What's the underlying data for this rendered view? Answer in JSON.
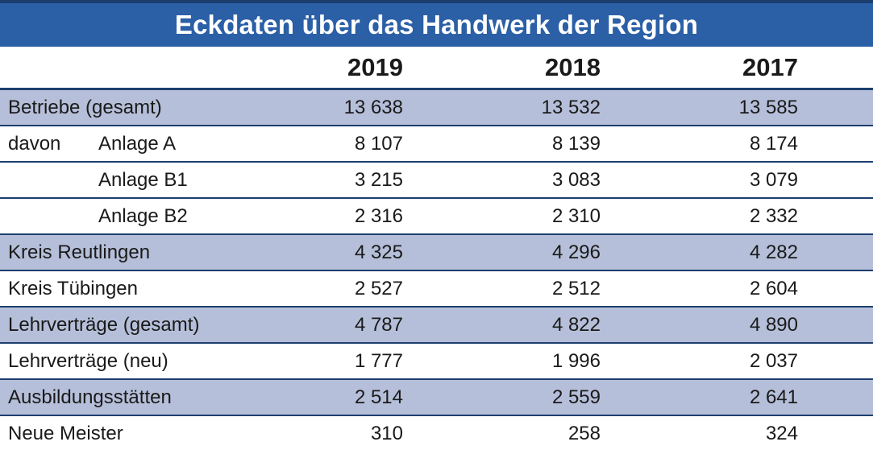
{
  "title": "Eckdaten über das Handwerk der Region",
  "colors": {
    "title_bar": "#2b5fa6",
    "row_shade": "#b6bfd9",
    "rule_line": "#1c3e6e"
  },
  "table": {
    "columns": [
      "2019",
      "2018",
      "2017"
    ],
    "rows": [
      {
        "prefix": "",
        "label": "Betriebe (gesamt)",
        "values": [
          "13 638",
          "13 532",
          "13 585"
        ]
      },
      {
        "prefix": "davon",
        "label": "Anlage A",
        "values": [
          "8 107",
          "8 139",
          "8 174"
        ]
      },
      {
        "prefix": "",
        "label": "Anlage B1",
        "values": [
          "3 215",
          "3 083",
          "3 079"
        ]
      },
      {
        "prefix": "",
        "label": "Anlage B2",
        "values": [
          "2 316",
          "2 310",
          "2 332"
        ]
      },
      {
        "prefix": "",
        "label": "Kreis Reutlingen",
        "values": [
          "4 325",
          "4 296",
          "4 282"
        ]
      },
      {
        "prefix": "",
        "label": "Kreis Tübingen",
        "values": [
          "2 527",
          "2 512",
          "2 604"
        ]
      },
      {
        "prefix": "",
        "label": "Lehrverträge (gesamt)",
        "values": [
          "4 787",
          "4 822",
          "4 890"
        ]
      },
      {
        "prefix": "",
        "label": "Lehrverträge (neu)",
        "values": [
          "1 777",
          "1 996",
          "2 037"
        ]
      },
      {
        "prefix": "",
        "label": "Ausbildungsstätten",
        "values": [
          "2 514",
          "2 559",
          "2 641"
        ]
      },
      {
        "prefix": "",
        "label": "Neue Meister",
        "values": [
          "310",
          "258",
          "324"
        ]
      }
    ]
  },
  "chart_data": {
    "type": "table",
    "title": "Eckdaten über das Handwerk der Region",
    "columns": [
      "",
      "2019",
      "2018",
      "2017"
    ],
    "rows": [
      {
        "label": "Betriebe (gesamt)",
        "values": [
          13638,
          13532,
          13585
        ]
      },
      {
        "label": "davon Anlage A",
        "values": [
          8107,
          8139,
          8174
        ]
      },
      {
        "label": "davon Anlage B1",
        "values": [
          3215,
          3083,
          3079
        ]
      },
      {
        "label": "davon Anlage B2",
        "values": [
          2316,
          2310,
          2332
        ]
      },
      {
        "label": "Kreis Reutlingen",
        "values": [
          4325,
          4296,
          4282
        ]
      },
      {
        "label": "Kreis Tübingen",
        "values": [
          2527,
          2512,
          2604
        ]
      },
      {
        "label": "Lehrverträge (gesamt)",
        "values": [
          4787,
          4822,
          4890
        ]
      },
      {
        "label": "Lehrverträge (neu)",
        "values": [
          1777,
          1996,
          2037
        ]
      },
      {
        "label": "Ausbildungsstätten",
        "values": [
          2514,
          2559,
          2641
        ]
      },
      {
        "label": "Neue Meister",
        "values": [
          310,
          258,
          324
        ]
      }
    ]
  }
}
